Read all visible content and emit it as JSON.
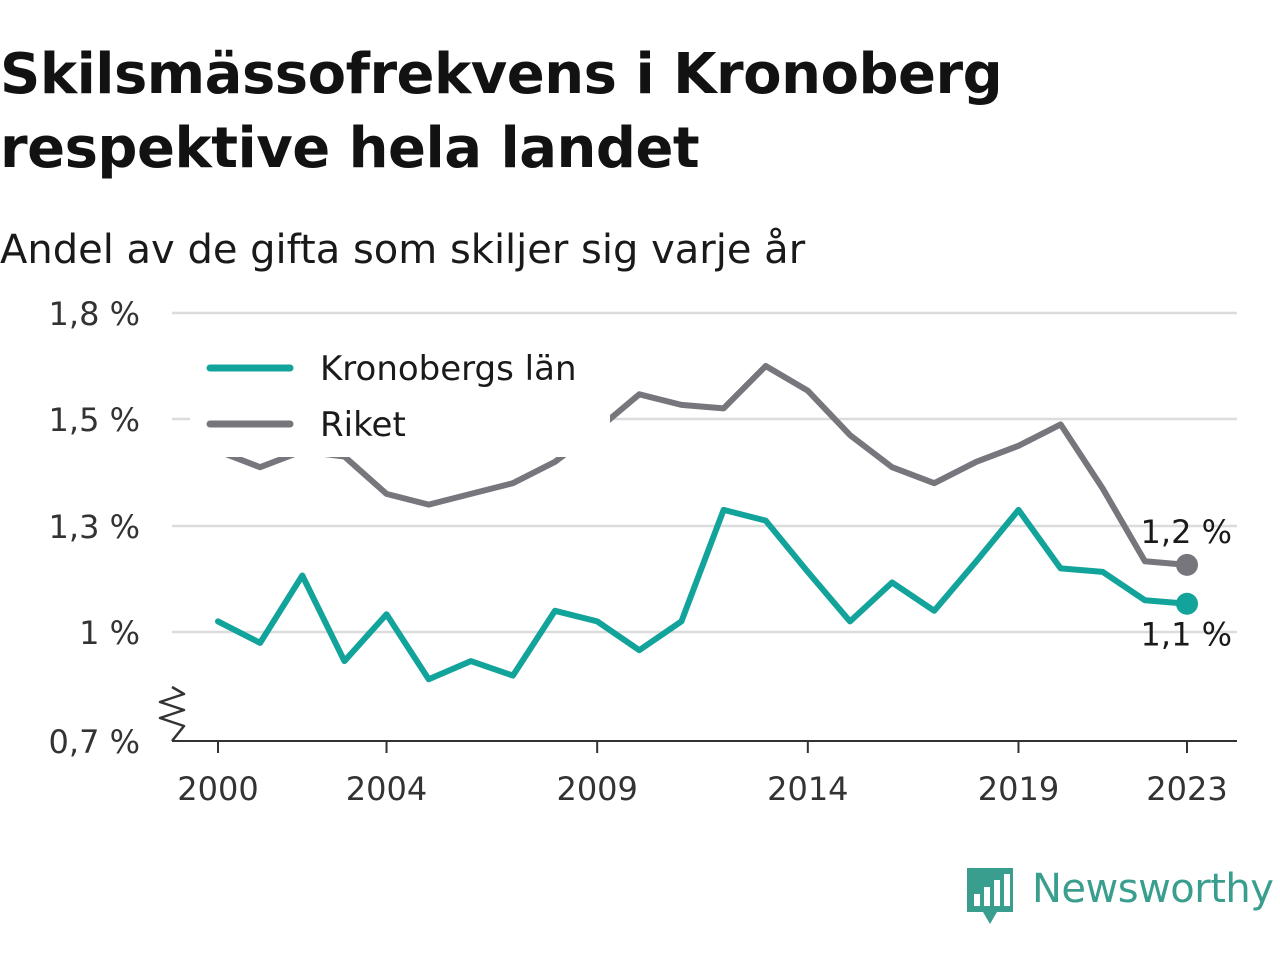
{
  "title_line1": "Skilsmässofrekvens i Kronoberg",
  "title_line2": "respektive hela landet",
  "subtitle": "Andel av de gifta som skiljer sig varje år",
  "brand": {
    "name": "Newsworthy",
    "color": "#3a9e8f"
  },
  "chart_data": {
    "type": "line",
    "x": [
      2000,
      2001,
      2002,
      2003,
      2004,
      2005,
      2006,
      2007,
      2008,
      2009,
      2010,
      2011,
      2012,
      2013,
      2014,
      2015,
      2016,
      2017,
      2018,
      2019,
      2020,
      2021,
      2022,
      2023
    ],
    "series": [
      {
        "name": "Kronobergs län",
        "color": "#12a39a",
        "values": [
          1.03,
          0.97,
          1.16,
          0.92,
          1.05,
          0.87,
          0.92,
          0.88,
          1.06,
          1.03,
          0.95,
          1.03,
          1.33,
          1.31,
          1.17,
          1.03,
          1.14,
          1.06,
          1.2,
          1.33,
          1.18,
          1.17,
          1.09,
          1.08
        ],
        "end_label": "1,1 %"
      },
      {
        "name": "Riket",
        "color": "#76767c",
        "values": [
          1.44,
          1.41,
          1.44,
          1.43,
          1.36,
          1.34,
          1.36,
          1.38,
          1.42,
          1.48,
          1.57,
          1.54,
          1.53,
          1.65,
          1.58,
          1.47,
          1.41,
          1.38,
          1.42,
          1.45,
          1.49,
          1.37,
          1.2,
          1.19
        ],
        "end_label": "1,2 %"
      }
    ],
    "y_ticks": [
      {
        "value": 0.7,
        "label": "0,7 %"
      },
      {
        "value": 1.0,
        "label": "1 %"
      },
      {
        "value": 1.3,
        "label": "1,3 %"
      },
      {
        "value": 1.5,
        "label": "1,5 %"
      },
      {
        "value": 1.8,
        "label": "1,8 %"
      }
    ],
    "x_ticks": [
      {
        "value": 2000,
        "label": "2000"
      },
      {
        "value": 2004,
        "label": "2004"
      },
      {
        "value": 2009,
        "label": "2009"
      },
      {
        "value": 2014,
        "label": "2014"
      },
      {
        "value": 2019,
        "label": "2019"
      },
      {
        "value": 2023,
        "label": "2023"
      }
    ],
    "xlim": [
      1999,
      2024.2
    ],
    "grid": true,
    "axis_break": true,
    "legend_position": "top-left"
  }
}
